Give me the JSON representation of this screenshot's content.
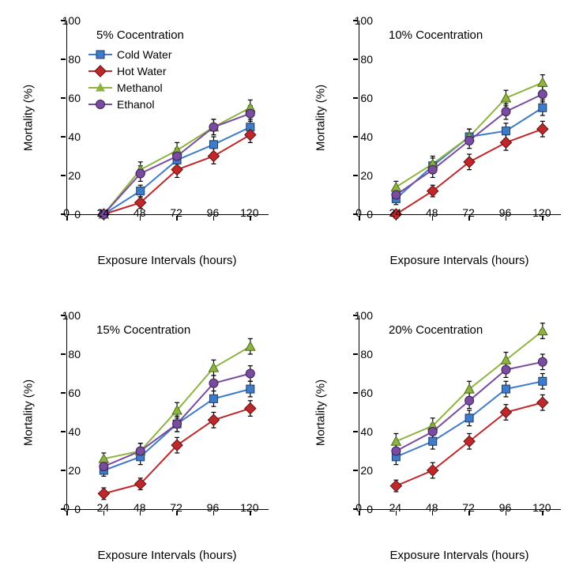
{
  "xlabel": "Exposure Intervals (hours)",
  "ylabel": "Mortality (%)",
  "xvalues": [
    24,
    48,
    72,
    96,
    120
  ],
  "xticks": [
    0,
    24,
    48,
    72,
    96,
    120
  ],
  "yticks": [
    0,
    20,
    40,
    60,
    80,
    100
  ],
  "ylim": [
    0,
    100
  ],
  "xlim": [
    0,
    132
  ],
  "axis_label_fontsize": 15,
  "tick_fontsize": 14,
  "series": [
    {
      "name": "Cold Water",
      "color": "#3E7BC9",
      "marker": "square"
    },
    {
      "name": "Hot Water",
      "color": "#C0272A",
      "marker": "diamond"
    },
    {
      "name": "Methanol",
      "color": "#8EB340",
      "marker": "triangle"
    },
    {
      "name": "Ethanol",
      "color": "#7A4CA0",
      "marker": "circle"
    }
  ],
  "error_bar_color": "#000000",
  "error_cap_width": 6,
  "line_width": 2,
  "panels": [
    {
      "title": "5% Cocentration",
      "pos": "tl",
      "show_legend": true,
      "data": {
        "Cold Water": {
          "y": [
            0,
            12,
            28,
            36,
            45
          ],
          "err": [
            2,
            3,
            4,
            4,
            4
          ]
        },
        "Hot Water": {
          "y": [
            0,
            6,
            23,
            30,
            41
          ],
          "err": [
            2,
            3,
            4,
            4,
            4
          ]
        },
        "Methanol": {
          "y": [
            0,
            23,
            33,
            45,
            55
          ],
          "err": [
            2,
            4,
            4,
            4,
            4
          ]
        },
        "Ethanol": {
          "y": [
            0,
            21,
            30,
            45,
            52
          ],
          "err": [
            2,
            4,
            4,
            4,
            4
          ]
        }
      }
    },
    {
      "title": "10% Cocentration",
      "pos": "tr",
      "show_legend": false,
      "data": {
        "Cold Water": {
          "y": [
            8,
            25,
            40,
            43,
            55
          ],
          "err": [
            3,
            4,
            4,
            4,
            4
          ]
        },
        "Hot Water": {
          "y": [
            0,
            12,
            27,
            37,
            44
          ],
          "err": [
            2,
            3,
            4,
            4,
            4
          ]
        },
        "Methanol": {
          "y": [
            14,
            26,
            40,
            60,
            68
          ],
          "err": [
            3,
            4,
            4,
            4,
            4
          ]
        },
        "Ethanol": {
          "y": [
            10,
            23,
            38,
            53,
            62
          ],
          "err": [
            3,
            4,
            4,
            4,
            4
          ]
        }
      }
    },
    {
      "title": "15% Cocentration",
      "pos": "bl",
      "show_legend": false,
      "data": {
        "Cold Water": {
          "y": [
            20,
            27,
            44,
            57,
            62
          ],
          "err": [
            3,
            4,
            4,
            4,
            4
          ]
        },
        "Hot Water": {
          "y": [
            8,
            13,
            33,
            46,
            52
          ],
          "err": [
            3,
            3,
            4,
            4,
            4
          ]
        },
        "Methanol": {
          "y": [
            26,
            30,
            51,
            73,
            84
          ],
          "err": [
            3,
            4,
            4,
            4,
            4
          ]
        },
        "Ethanol": {
          "y": [
            22,
            30,
            44,
            65,
            70
          ],
          "err": [
            3,
            4,
            4,
            4,
            4
          ]
        }
      }
    },
    {
      "title": "20% Cocentration",
      "pos": "br",
      "show_legend": false,
      "data": {
        "Cold Water": {
          "y": [
            27,
            35,
            47,
            62,
            66
          ],
          "err": [
            4,
            4,
            4,
            4,
            4
          ]
        },
        "Hot Water": {
          "y": [
            12,
            20,
            35,
            50,
            55
          ],
          "err": [
            3,
            4,
            4,
            4,
            4
          ]
        },
        "Methanol": {
          "y": [
            35,
            43,
            62,
            77,
            92
          ],
          "err": [
            4,
            4,
            4,
            4,
            4
          ]
        },
        "Ethanol": {
          "y": [
            30,
            40,
            56,
            72,
            76
          ],
          "err": [
            4,
            4,
            4,
            4,
            4
          ]
        }
      }
    }
  ]
}
